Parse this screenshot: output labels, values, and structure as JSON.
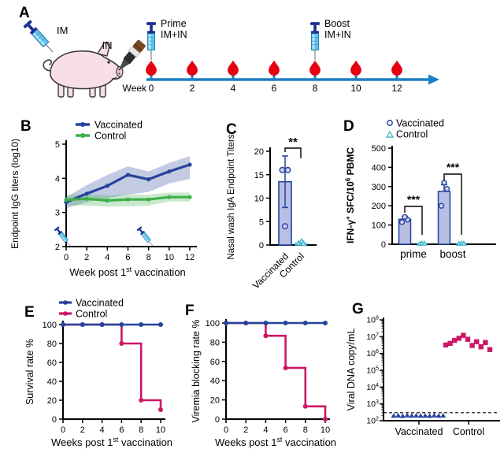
{
  "colors": {
    "vaccinated": "#26439b",
    "control_green": "#3eb049",
    "control_magenta": "#cc1667",
    "teal": "#3fb3c8",
    "bar_fill": "#b9bee3",
    "bar_fill_teal": "#c8eaf2",
    "point_fill": "#cdd2ee",
    "blood_red": "#e60012",
    "timeline": "#1b7fc4",
    "axis": "#000000"
  },
  "panel_labels": {
    "A": "A",
    "B": "B",
    "C": "C",
    "D": "D",
    "E": "E",
    "F": "F",
    "G": "G"
  },
  "panel_a": {
    "im_label": "IM",
    "in_label": "IN",
    "prime_title": "Prime",
    "prime_sub": "IM+IN",
    "boost_title": "Boost",
    "boost_sub": "IM+IN",
    "week_label": "Week",
    "weeks": [
      0,
      2,
      4,
      6,
      8,
      10,
      12
    ],
    "syringe_weeks": [
      0,
      8
    ]
  },
  "chart_data": [
    {
      "panel": "B",
      "type": "line",
      "ylabel": "Endpoint IgG titers (log10)",
      "xlabel": {
        "pre": "Week post 1",
        "sup": "st",
        "post": " vaccination"
      },
      "x": [
        0,
        2,
        4,
        6,
        8,
        10,
        12
      ],
      "xticks": [
        0,
        2,
        4,
        6,
        8,
        10,
        12
      ],
      "ylim": [
        2,
        5
      ],
      "yticks": [
        2,
        3,
        4,
        5
      ],
      "legend_position": "top-left",
      "series": [
        {
          "name": "Vaccinated",
          "color": "#26439b",
          "values": [
            3.3,
            3.55,
            3.78,
            4.1,
            3.97,
            4.2,
            4.4
          ],
          "band_upper": [
            3.45,
            3.8,
            4.1,
            4.35,
            4.2,
            4.45,
            4.65
          ],
          "band_lower": [
            3.12,
            3.3,
            3.42,
            3.52,
            3.6,
            3.85,
            3.98
          ]
        },
        {
          "name": "Control",
          "color": "#3eb049",
          "values": [
            3.37,
            3.4,
            3.35,
            3.38,
            3.38,
            3.45,
            3.45
          ],
          "band_upper": [
            3.5,
            3.55,
            3.5,
            3.52,
            3.52,
            3.58,
            3.58
          ],
          "band_lower": [
            3.22,
            3.2,
            3.17,
            3.18,
            3.2,
            3.32,
            3.32
          ]
        }
      ],
      "syringe_weeks": [
        0.4,
        8.4
      ]
    },
    {
      "panel": "C",
      "type": "bar",
      "ylabel": "Nasal wash IgA Endpoint Titers",
      "ylim": [
        0,
        20
      ],
      "yticks": [
        0,
        5,
        10,
        15,
        20
      ],
      "categories": [
        "Vaccinated",
        "Control"
      ],
      "values": [
        13.5,
        0.35
      ],
      "error_upper": [
        19,
        1
      ],
      "error_lower": [
        8,
        0
      ],
      "points": [
        [
          16,
          16,
          4
        ],
        [
          0.4,
          0.8,
          0.3
        ]
      ],
      "significance": "**"
    },
    {
      "panel": "D",
      "type": "grouped_bar",
      "ylabel_rich": [
        {
          "t": "IFN-γ",
          "sup": false
        },
        {
          "t": "+",
          "sup": true
        },
        {
          "t": " SFC/10",
          "sup": false
        },
        {
          "t": "6",
          "sup": true
        },
        {
          "t": " PBMC",
          "sup": false
        }
      ],
      "ylim": [
        0,
        500
      ],
      "yticks": [
        0,
        100,
        200,
        300,
        400,
        500
      ],
      "categories": [
        "prime",
        "boost"
      ],
      "legend": [
        "Vaccinated",
        "Control"
      ],
      "series": [
        {
          "name": "Vaccinated",
          "values": [
            130,
            275
          ],
          "error_upper": [
            145,
            310
          ],
          "points": [
            [
              115,
              128,
              142
            ],
            [
              200,
              288,
              320
            ]
          ]
        },
        {
          "name": "Control",
          "values": [
            4,
            4
          ],
          "error_upper": [
            6,
            6
          ],
          "points": [
            [
              3,
              5,
              4
            ],
            [
              3,
              5,
              4
            ]
          ]
        }
      ],
      "significance": [
        "***",
        "***"
      ]
    },
    {
      "panel": "E",
      "type": "step",
      "ylabel": "Survival rate %",
      "xlabel": {
        "pre": "Weeks post 1",
        "sup": "st",
        "post": " vaccination"
      },
      "ylim": [
        0,
        100
      ],
      "yticks": [
        0,
        20,
        40,
        60,
        80,
        100
      ],
      "xlim": [
        0,
        10
      ],
      "xticks": [
        0,
        2,
        4,
        6,
        8,
        10
      ],
      "legend": [
        "Vaccinated",
        "Control"
      ],
      "series": [
        {
          "name": "Vaccinated",
          "color": "#26439b",
          "steps": [
            [
              0,
              100
            ],
            [
              10,
              100
            ]
          ],
          "markers": [
            [
              0,
              100
            ],
            [
              2,
              100
            ],
            [
              4,
              100
            ],
            [
              6,
              100
            ],
            [
              8,
              100
            ],
            [
              10,
              100
            ]
          ]
        },
        {
          "name": "Control",
          "color": "#cc1667",
          "steps": [
            [
              0,
              100
            ],
            [
              6,
              100
            ],
            [
              6,
              80
            ],
            [
              8,
              80
            ],
            [
              8,
              20
            ],
            [
              10,
              20
            ],
            [
              10,
              10
            ]
          ],
          "markers": [
            [
              0,
              100
            ],
            [
              2,
              100
            ],
            [
              4,
              100
            ],
            [
              6,
              80
            ],
            [
              8,
              20
            ],
            [
              10,
              10
            ]
          ]
        }
      ]
    },
    {
      "panel": "F",
      "type": "step",
      "ylabel": "Viremia blocking rate %",
      "xlabel": {
        "pre": "Weeks post 1",
        "sup": "st",
        "post": " vaccination"
      },
      "ylim": [
        0,
        100
      ],
      "yticks": [
        0,
        20,
        40,
        60,
        80,
        100
      ],
      "xlim": [
        0,
        10
      ],
      "xticks": [
        0,
        2,
        4,
        6,
        8,
        10
      ],
      "series": [
        {
          "name": "Vaccinated",
          "color": "#26439b",
          "steps": [
            [
              0,
              100
            ],
            [
              10,
              100
            ]
          ],
          "markers": [
            [
              0,
              100
            ],
            [
              2,
              100
            ],
            [
              4,
              100
            ],
            [
              6,
              100
            ],
            [
              8,
              100
            ],
            [
              10,
              100
            ]
          ]
        },
        {
          "name": "Control",
          "color": "#cc1667",
          "steps": [
            [
              0,
              100
            ],
            [
              4,
              100
            ],
            [
              4,
              86.7
            ],
            [
              6,
              86.7
            ],
            [
              6,
              53.3
            ],
            [
              8,
              53.3
            ],
            [
              8,
              13.3
            ],
            [
              10,
              13.3
            ],
            [
              10,
              0
            ]
          ],
          "markers": [
            [
              0,
              100
            ],
            [
              2,
              100
            ],
            [
              4,
              86.7
            ],
            [
              6,
              53.3
            ],
            [
              8,
              13.3
            ],
            [
              10,
              0
            ]
          ]
        }
      ]
    },
    {
      "panel": "G",
      "type": "scatter_log",
      "ylabel": "Viral DNA copy/mL",
      "y_exponents": [
        2,
        3,
        4,
        5,
        6,
        7,
        8
      ],
      "categories": [
        "Vaccinated",
        "Control"
      ],
      "detection_limit": 300,
      "groups": [
        {
          "name": "Vaccinated",
          "marker": "triangle",
          "color": "#26439b",
          "values": [
            200,
            205,
            195,
            210,
            200,
            205,
            198,
            202,
            196,
            208,
            200,
            204
          ]
        },
        {
          "name": "Control",
          "marker": "square",
          "color": "#cc1667",
          "values": [
            3200000,
            4000000,
            6000000,
            8000000,
            12000000,
            7000000,
            3000000,
            5000000,
            2500000,
            4500000,
            1700000
          ]
        }
      ]
    }
  ]
}
